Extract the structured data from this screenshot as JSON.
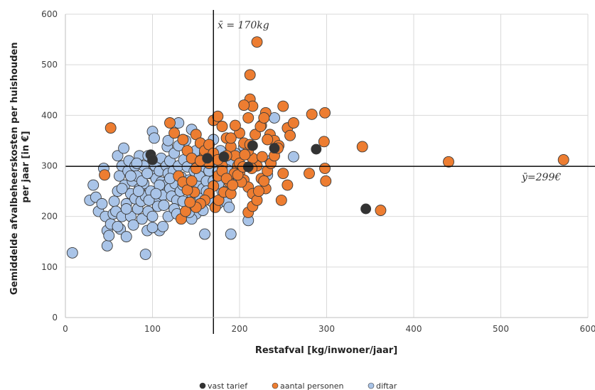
{
  "chart_data": {
    "type": "scatter",
    "xlabel": "Restafval [kg/inwoner/jaar]",
    "ylabel": "Gemiddelde afvalbeheerskosten per huishouden per jaar [in €]",
    "ylabel_lines": [
      "Gemiddelde afvalbeheerskosten per huishouden",
      "per jaar [in €]"
    ],
    "xlim": [
      0,
      600
    ],
    "ylim": [
      0,
      600
    ],
    "xticks": [
      "0",
      "100",
      "200",
      "300",
      "400",
      "500",
      "600"
    ],
    "yticks": [
      "0",
      "100",
      "200",
      "300",
      "400",
      "500",
      "600"
    ],
    "grid": true,
    "legend_position": "bottom",
    "mean_lines": {
      "x": {
        "value": 170,
        "label": "x̄ = 170kg"
      },
      "y": {
        "value": 299,
        "label": "ȳ=299€"
      }
    },
    "series": [
      {
        "name": "vast tarief",
        "color": "#333333",
        "points": [
          [
            98,
            322
          ],
          [
            100,
            312
          ],
          [
            163,
            315
          ],
          [
            182,
            318
          ],
          [
            210,
            298
          ],
          [
            215,
            340
          ],
          [
            240,
            335
          ],
          [
            288,
            333
          ],
          [
            345,
            215
          ]
        ]
      },
      {
        "name": "aantal personen",
        "color": "#ed7d31",
        "points": [
          [
            52,
            375
          ],
          [
            45,
            282
          ],
          [
            120,
            385
          ],
          [
            125,
            365
          ],
          [
            135,
            352
          ],
          [
            140,
            330
          ],
          [
            145,
            315
          ],
          [
            150,
            362
          ],
          [
            155,
            345
          ],
          [
            160,
            325
          ],
          [
            165,
            305
          ],
          [
            170,
            390
          ],
          [
            175,
            398
          ],
          [
            180,
            378
          ],
          [
            185,
            355
          ],
          [
            190,
            338
          ],
          [
            195,
            320
          ],
          [
            198,
            300
          ],
          [
            200,
            285
          ],
          [
            205,
            272
          ],
          [
            210,
            258
          ],
          [
            215,
            245
          ],
          [
            220,
            545
          ],
          [
            212,
            480
          ],
          [
            212,
            432
          ],
          [
            215,
            418
          ],
          [
            205,
            420
          ],
          [
            210,
            395
          ],
          [
            225,
            380
          ],
          [
            230,
            405
          ],
          [
            235,
            362
          ],
          [
            240,
            350
          ],
          [
            245,
            340
          ],
          [
            250,
            418
          ],
          [
            255,
            375
          ],
          [
            258,
            360
          ],
          [
            262,
            385
          ],
          [
            250,
            285
          ],
          [
            255,
            262
          ],
          [
            248,
            232
          ],
          [
            230,
            255
          ],
          [
            225,
            275
          ],
          [
            220,
            300
          ],
          [
            215,
            315
          ],
          [
            210,
            330
          ],
          [
            205,
            345
          ],
          [
            200,
            365
          ],
          [
            195,
            380
          ],
          [
            190,
            355
          ],
          [
            185,
            320
          ],
          [
            180,
            300
          ],
          [
            175,
            280
          ],
          [
            170,
            260
          ],
          [
            165,
            245
          ],
          [
            160,
            232
          ],
          [
            155,
            225
          ],
          [
            150,
            218
          ],
          [
            210,
            208
          ],
          [
            215,
            220
          ],
          [
            220,
            232
          ],
          [
            222,
            250
          ],
          [
            228,
            270
          ],
          [
            232,
            290
          ],
          [
            236,
            305
          ],
          [
            240,
            320
          ],
          [
            244,
            335
          ],
          [
            283,
            402
          ],
          [
            298,
            405
          ],
          [
            297,
            348
          ],
          [
            298,
            295
          ],
          [
            299,
            270
          ],
          [
            280,
            285
          ],
          [
            341,
            338
          ],
          [
            362,
            212
          ],
          [
            440,
            308
          ],
          [
            572,
            312
          ],
          [
            133,
            195
          ],
          [
            138,
            210
          ],
          [
            143,
            228
          ],
          [
            148,
            248
          ],
          [
            172,
            218
          ],
          [
            176,
            232
          ],
          [
            182,
            248
          ],
          [
            188,
            268
          ],
          [
            194,
            285
          ],
          [
            200,
            305
          ],
          [
            206,
            322
          ],
          [
            212,
            342
          ],
          [
            218,
            362
          ],
          [
            224,
            378
          ],
          [
            228,
            395
          ],
          [
            232,
            352
          ],
          [
            226,
            318
          ],
          [
            214,
            295
          ],
          [
            202,
            268
          ],
          [
            190,
            245
          ],
          [
            130,
            280
          ],
          [
            135,
            268
          ],
          [
            140,
            252
          ],
          [
            145,
            270
          ],
          [
            150,
            295
          ],
          [
            155,
            310
          ],
          [
            160,
            330
          ],
          [
            165,
            342
          ],
          [
            170,
            325
          ],
          [
            175,
            312
          ],
          [
            180,
            290
          ],
          [
            185,
            275
          ],
          [
            192,
            262
          ],
          [
            198,
            282
          ],
          [
            204,
            298
          ]
        ]
      },
      {
        "name": "diftar",
        "color": "#a9c4e8",
        "points": [
          [
            8,
            128
          ],
          [
            28,
            232
          ],
          [
            32,
            262
          ],
          [
            35,
            238
          ],
          [
            38,
            210
          ],
          [
            42,
            225
          ],
          [
            44,
            295
          ],
          [
            46,
            200
          ],
          [
            48,
            172
          ],
          [
            48,
            142
          ],
          [
            50,
            162
          ],
          [
            52,
            185
          ],
          [
            55,
            205
          ],
          [
            56,
            230
          ],
          [
            58,
            210
          ],
          [
            60,
            250
          ],
          [
            60,
            320
          ],
          [
            62,
            280
          ],
          [
            63,
            175
          ],
          [
            65,
            200
          ],
          [
            65,
            300
          ],
          [
            67,
            335
          ],
          [
            68,
            262
          ],
          [
            70,
            160
          ],
          [
            70,
            225
          ],
          [
            72,
            290
          ],
          [
            73,
            310
          ],
          [
            75,
            245
          ],
          [
            75,
            200
          ],
          [
            77,
            270
          ],
          [
            78,
            183
          ],
          [
            80,
            235
          ],
          [
            80,
            300
          ],
          [
            82,
            280
          ],
          [
            83,
            215
          ],
          [
            85,
            255
          ],
          [
            85,
            320
          ],
          [
            87,
            230
          ],
          [
            88,
            195
          ],
          [
            90,
            300
          ],
          [
            90,
            265
          ],
          [
            92,
            125
          ],
          [
            92,
            240
          ],
          [
            94,
            172
          ],
          [
            95,
            210
          ],
          [
            95,
            320
          ],
          [
            97,
            285
          ],
          [
            98,
            250
          ],
          [
            100,
            368
          ],
          [
            100,
            200
          ],
          [
            102,
            355
          ],
          [
            103,
            300
          ],
          [
            104,
            275
          ],
          [
            105,
            238
          ],
          [
            106,
            220
          ],
          [
            108,
            172
          ],
          [
            108,
            290
          ],
          [
            110,
            268
          ],
          [
            110,
            315
          ],
          [
            112,
            242
          ],
          [
            113,
            222
          ],
          [
            115,
            262
          ],
          [
            116,
            300
          ],
          [
            117,
            338
          ],
          [
            118,
            285
          ],
          [
            120,
            310
          ],
          [
            120,
            255
          ],
          [
            122,
            240
          ],
          [
            124,
            290
          ],
          [
            125,
            325
          ],
          [
            126,
            265
          ],
          [
            128,
            232
          ],
          [
            130,
            300
          ],
          [
            130,
            385
          ],
          [
            132,
            250
          ],
          [
            133,
            278
          ],
          [
            135,
            262
          ],
          [
            136,
            312
          ],
          [
            138,
            350
          ],
          [
            140,
            298
          ],
          [
            140,
            228
          ],
          [
            142,
            272
          ],
          [
            145,
            372
          ],
          [
            145,
            245
          ],
          [
            148,
            290
          ],
          [
            150,
            265
          ],
          [
            150,
            205
          ],
          [
            152,
            310
          ],
          [
            154,
            280
          ],
          [
            155,
            238
          ],
          [
            158,
            255
          ],
          [
            160,
            298
          ],
          [
            160,
            165
          ],
          [
            162,
            270
          ],
          [
            165,
            290
          ],
          [
            165,
            242
          ],
          [
            168,
            230
          ],
          [
            170,
            352
          ],
          [
            170,
            270
          ],
          [
            172,
            308
          ],
          [
            175,
            225
          ],
          [
            175,
            288
          ],
          [
            178,
            330
          ],
          [
            180,
            250
          ],
          [
            182,
            300
          ],
          [
            185,
            275
          ],
          [
            185,
            228
          ],
          [
            188,
            218
          ],
          [
            190,
            302
          ],
          [
            190,
            165
          ],
          [
            195,
            325
          ],
          [
            198,
            285
          ],
          [
            205,
            338
          ],
          [
            210,
            192
          ],
          [
            232,
            282
          ],
          [
            235,
            310
          ],
          [
            240,
            395
          ],
          [
            262,
            318
          ],
          [
            155,
            345
          ],
          [
            60,
            180
          ],
          [
            82,
            305
          ],
          [
            118,
            200
          ],
          [
            145,
            195
          ],
          [
            125,
            215
          ],
          [
            100,
            178
          ],
          [
            88,
            270
          ],
          [
            70,
            215
          ],
          [
            75,
            280
          ],
          [
            65,
            255
          ],
          [
            112,
            180
          ],
          [
            128,
            205
          ],
          [
            142,
            208
          ],
          [
            158,
            212
          ],
          [
            135,
            230
          ],
          [
            120,
            275
          ],
          [
            108,
            262
          ],
          [
            96,
            232
          ],
          [
            84,
            250
          ],
          [
            118,
            350
          ],
          [
            130,
            340
          ],
          [
            150,
            330
          ],
          [
            162,
            250
          ],
          [
            176,
            265
          ],
          [
            186,
            292
          ],
          [
            94,
            285
          ],
          [
            104,
            245
          ]
        ]
      }
    ]
  }
}
